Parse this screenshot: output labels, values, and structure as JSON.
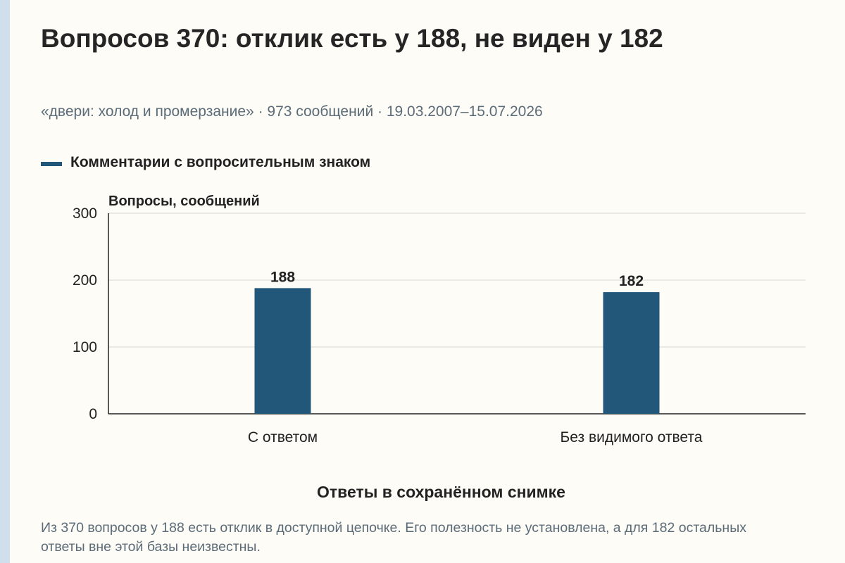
{
  "title": "Вопросов 370: отклик есть у 188, не виден у 182",
  "subtitle": "«двери: холод и промерзание» · 973 сообщений · 19.03.2007–15.07.2026",
  "note": "Из 370 вопросов у 188 есть отклик в доступной цепочке. Его полезность не установлена, а для 182 остальных ответы вне этой базы неизвестны.",
  "colors": {
    "bar": "#22577a",
    "grid": "#d8d8d2",
    "axis": "#222222",
    "accent_stripe": "#cfe0ec"
  },
  "chart_data": {
    "type": "bar",
    "categories": [
      "С ответом",
      "Без видимого ответа"
    ],
    "series": [
      {
        "name": "Комментарии с вопросительным знаком",
        "values": [
          188,
          182
        ]
      }
    ],
    "data_labels": [
      "188",
      "182"
    ],
    "ylabel": "Вопросы, сообщений",
    "xlabel": "Ответы в сохранённом снимке",
    "ylim": [
      0,
      300
    ],
    "yticks": [
      0,
      100,
      200,
      300
    ],
    "grid": true,
    "legend_position": "top-left"
  }
}
